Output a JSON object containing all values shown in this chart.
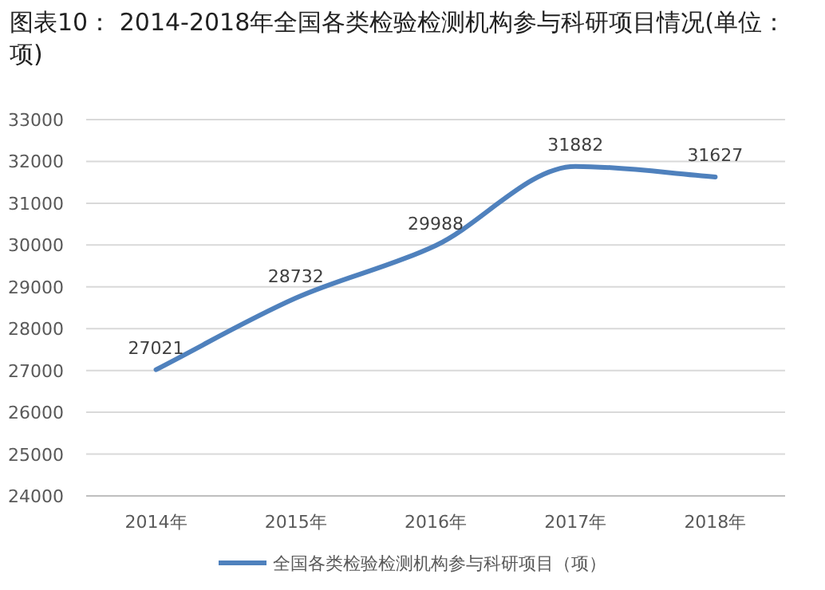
{
  "chart_data": {
    "type": "line",
    "title": "图表10：  2014-2018年全国各类检验检测机构参与科研项目情况(单位：项)",
    "categories": [
      "2014年",
      "2015年",
      "2016年",
      "2017年",
      "2018年"
    ],
    "series": [
      {
        "name": "全国各类检验检测机构参与科研项目（项）",
        "color": "#4f81bd",
        "values": [
          27021,
          28732,
          29988,
          31882,
          31627
        ]
      }
    ],
    "ylim": [
      24000,
      33000
    ],
    "yticks": [
      24000,
      25000,
      26000,
      27000,
      28000,
      29000,
      30000,
      31000,
      32000,
      33000
    ],
    "grid": "y",
    "legend": "bottom",
    "data_labels": true,
    "marker": "none",
    "line_style": "solid"
  }
}
